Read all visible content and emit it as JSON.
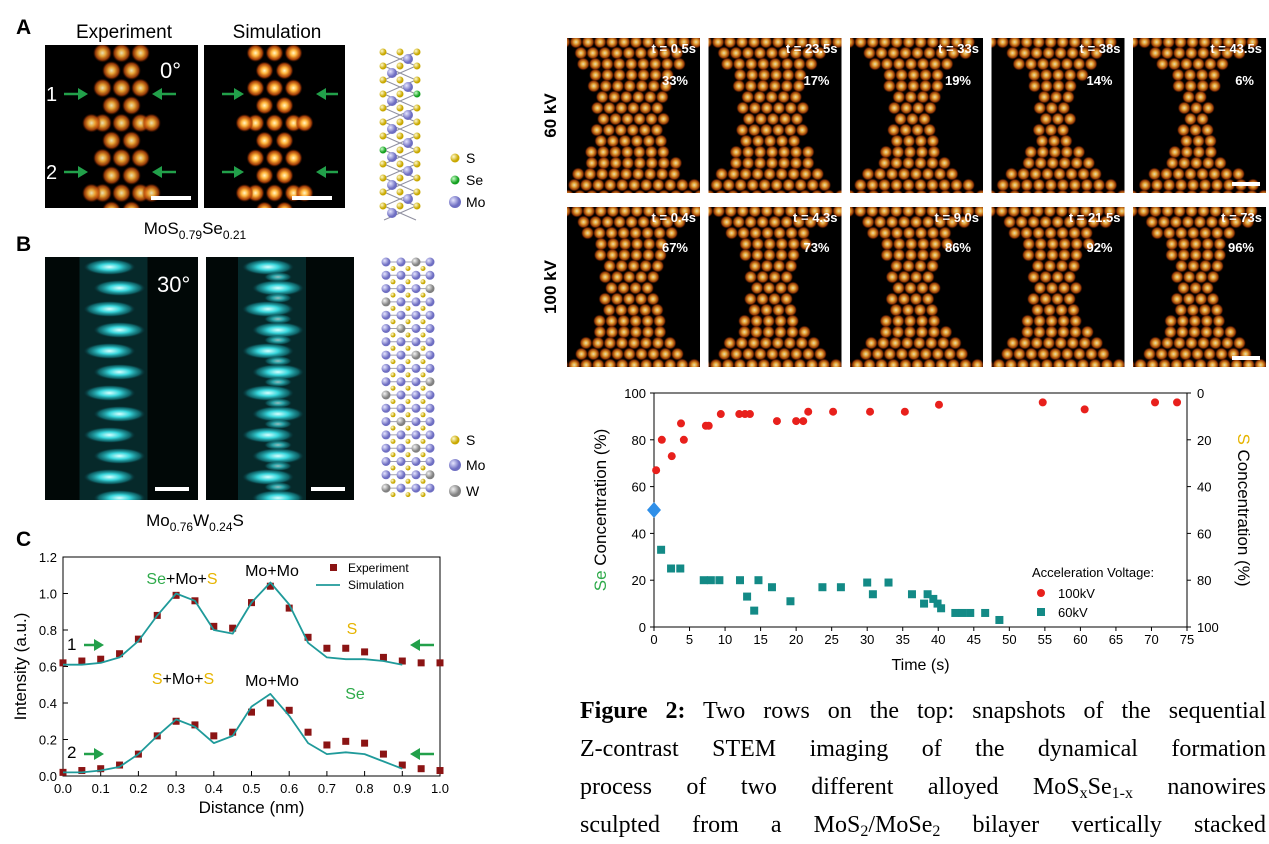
{
  "panels": {
    "A": {
      "label": "A",
      "headers": [
        "Experiment",
        "Simulation"
      ],
      "angle": "0°",
      "markers": [
        "1",
        "2"
      ],
      "legend": [
        "S",
        "Se",
        "Mo"
      ],
      "formula": [
        "MoS",
        {
          "sub": "0.79"
        },
        "Se",
        {
          "sub": "0.21"
        }
      ]
    },
    "B": {
      "label": "B",
      "angle": "30°",
      "legend": [
        "S",
        "Mo",
        "W"
      ],
      "formula": [
        "Mo",
        {
          "sub": "0.76"
        },
        "W",
        {
          "sub": "0.24"
        },
        "S"
      ]
    },
    "C": {
      "label": "C"
    }
  },
  "snapshots": {
    "rows": [
      {
        "label": "60 kV",
        "frames": [
          {
            "time": "t = 0.5s",
            "percent": "33%"
          },
          {
            "time": "t = 23.5s",
            "percent": "17%"
          },
          {
            "time": "t = 33s",
            "percent": "19%"
          },
          {
            "time": "t = 38s",
            "percent": "14%"
          },
          {
            "time": "t = 43.5s",
            "percent": "6%"
          }
        ]
      },
      {
        "label": "100 kV",
        "frames": [
          {
            "time": "t = 0.4s",
            "percent": "67%"
          },
          {
            "time": "t = 4.3s",
            "percent": "73%"
          },
          {
            "time": "t = 9.0s",
            "percent": "86%"
          },
          {
            "time": "t = 21.5s",
            "percent": "92%"
          },
          {
            "time": "t = 73s",
            "percent": "96%"
          }
        ]
      }
    ]
  },
  "chart_data": [
    {
      "type": "line",
      "xlabel": "Distance (nm)",
      "ylabel": "Intensity (a.u.)",
      "x": [
        0,
        0.05,
        0.1,
        0.15,
        0.2,
        0.25,
        0.3,
        0.35,
        0.4,
        0.45,
        0.5,
        0.55,
        0.6,
        0.65,
        0.7,
        0.75,
        0.8,
        0.85,
        0.9,
        0.95,
        1.0
      ],
      "xlim": [
        0,
        1.0
      ],
      "ylim": [
        0,
        1.2
      ],
      "xticks": [
        {
          "value": 0,
          "label": "0.0"
        },
        0.1,
        0.2,
        0.3,
        0.4,
        0.5,
        0.6,
        0.7,
        0.8,
        0.9,
        {
          "value": 1,
          "label": "1.0"
        }
      ],
      "yticks": [
        {
          "value": 0,
          "label": "0.0"
        },
        0.2,
        0.4,
        0.6,
        0.8,
        {
          "value": 1,
          "label": "1.0"
        },
        1.2
      ],
      "legend": "upper right",
      "series": [
        {
          "name": "Experiment",
          "color": "#8b1414",
          "marker": "square",
          "values": [
            0.62,
            0.63,
            0.64,
            0.67,
            0.75,
            0.88,
            0.99,
            0.96,
            0.82,
            0.81,
            0.95,
            1.04,
            0.92,
            0.76,
            0.7,
            0.7,
            0.68,
            0.65,
            0.63,
            0.62,
            0.62
          ]
        },
        {
          "name": "Simulation",
          "color": "#1f9a9a",
          "marker": "line",
          "values": [
            0.61,
            0.61,
            0.62,
            0.65,
            0.74,
            0.88,
            1.0,
            0.96,
            0.8,
            0.78,
            0.95,
            1.06,
            0.94,
            0.73,
            0.65,
            0.64,
            0.64,
            0.63,
            0.61,
            null,
            null
          ]
        },
        {
          "color": "#8b1414",
          "marker": "square",
          "values": [
            0.02,
            0.03,
            0.04,
            0.06,
            0.12,
            0.22,
            0.3,
            0.28,
            0.22,
            0.24,
            0.35,
            0.4,
            0.36,
            0.24,
            0.17,
            0.19,
            0.18,
            0.12,
            0.06,
            0.04,
            0.03
          ]
        },
        {
          "color": "#1f9a9a",
          "marker": "line",
          "values": [
            0.02,
            0.02,
            0.03,
            0.05,
            0.12,
            0.22,
            0.31,
            0.27,
            0.18,
            0.22,
            0.38,
            0.45,
            0.33,
            0.18,
            0.12,
            0.13,
            0.12,
            0.08,
            0.04,
            null,
            null
          ]
        }
      ],
      "curve_labels": [
        "1",
        "2"
      ],
      "annotations": [
        [
          {
            "text": "Se",
            "color": "#2eaa4a"
          },
          "+Mo+",
          {
            "text": "S",
            "color": "#e6b400"
          }
        ],
        [
          "Mo+Mo"
        ],
        [
          {
            "text": "S",
            "color": "#e6b400"
          }
        ],
        [
          {
            "text": "S",
            "color": "#e6b400"
          },
          "+Mo+",
          {
            "text": "S",
            "color": "#e6b400"
          }
        ],
        [
          "Mo+Mo"
        ],
        [
          {
            "text": "Se",
            "color": "#2eaa4a"
          }
        ]
      ]
    },
    {
      "type": "scatter",
      "xlabel": "Time (s)",
      "ylabel": [
        {
          "text": "Se",
          "color": "#2eaa4a"
        },
        " Concentration (%)"
      ],
      "y2label": [
        {
          "text": "S",
          "color": "#e6b400"
        },
        " Concentration (%)"
      ],
      "xlim": [
        0,
        75
      ],
      "ylim": [
        0,
        100
      ],
      "y2lim": [
        100,
        0
      ],
      "xticks": [
        0,
        5,
        10,
        15,
        20,
        25,
        30,
        35,
        40,
        45,
        50,
        55,
        60,
        65,
        70,
        75
      ],
      "yticks": [
        0,
        20,
        40,
        60,
        80,
        100
      ],
      "y2ticks": [
        0,
        20,
        40,
        60,
        80,
        100
      ],
      "legend": "lower right",
      "legend_title": "Acceleration Voltage:",
      "series": [
        {
          "name": "100kV",
          "color": "#e8201c",
          "marker": "circle",
          "x": [
            0.3,
            1.1,
            2.5,
            3.8,
            4.2,
            7.3,
            7.7,
            9.4,
            12,
            12.8,
            13.5,
            17.3,
            20,
            21,
            21.7,
            25.2,
            30.4,
            35.3,
            40.1,
            54.7,
            60.6,
            70.5,
            73.6
          ],
          "values": [
            67,
            80,
            73,
            87,
            80,
            86,
            86,
            91,
            91,
            91,
            91,
            88,
            88,
            88,
            92,
            92,
            92,
            92,
            95,
            96,
            93,
            96,
            96
          ]
        },
        {
          "name": "60kV",
          "color": "#138a86",
          "marker": "square",
          "x": [
            1,
            2.4,
            3.7,
            7,
            8,
            9.2,
            12.1,
            13.1,
            14.1,
            14.7,
            16.6,
            19.2,
            23.7,
            26.3,
            30,
            30.8,
            33,
            36.3,
            38,
            38.5,
            39.3,
            39.9,
            40.4,
            42.4,
            43.4,
            44.5,
            46.6,
            48.6
          ],
          "values": [
            33,
            25,
            25,
            20,
            20,
            20,
            20,
            13,
            7,
            20,
            17,
            11,
            17,
            17,
            19,
            14,
            19,
            14,
            10,
            14,
            12,
            10,
            8,
            6,
            6,
            6,
            6,
            3
          ]
        },
        {
          "color": "#2f8fe8",
          "marker": "diamond",
          "x": [
            0
          ],
          "values": [
            50
          ]
        }
      ]
    }
  ],
  "caption": {
    "lines": [
      [
        {
          "bold": "Figure 2:"
        },
        " Two rows on the top: snapshots of the sequential"
      ],
      [
        "Z-contrast STEM imaging of the dynamical formation"
      ],
      [
        "process of two different alloyed MoS",
        {
          "sub": "x"
        },
        "Se",
        {
          "sub": "1-x"
        },
        " nanowires"
      ],
      [
        "sculpted from a MoS",
        {
          "sub": "2"
        },
        "/MoSe",
        {
          "sub": "2"
        },
        " bilayer vertically stacked"
      ]
    ]
  }
}
